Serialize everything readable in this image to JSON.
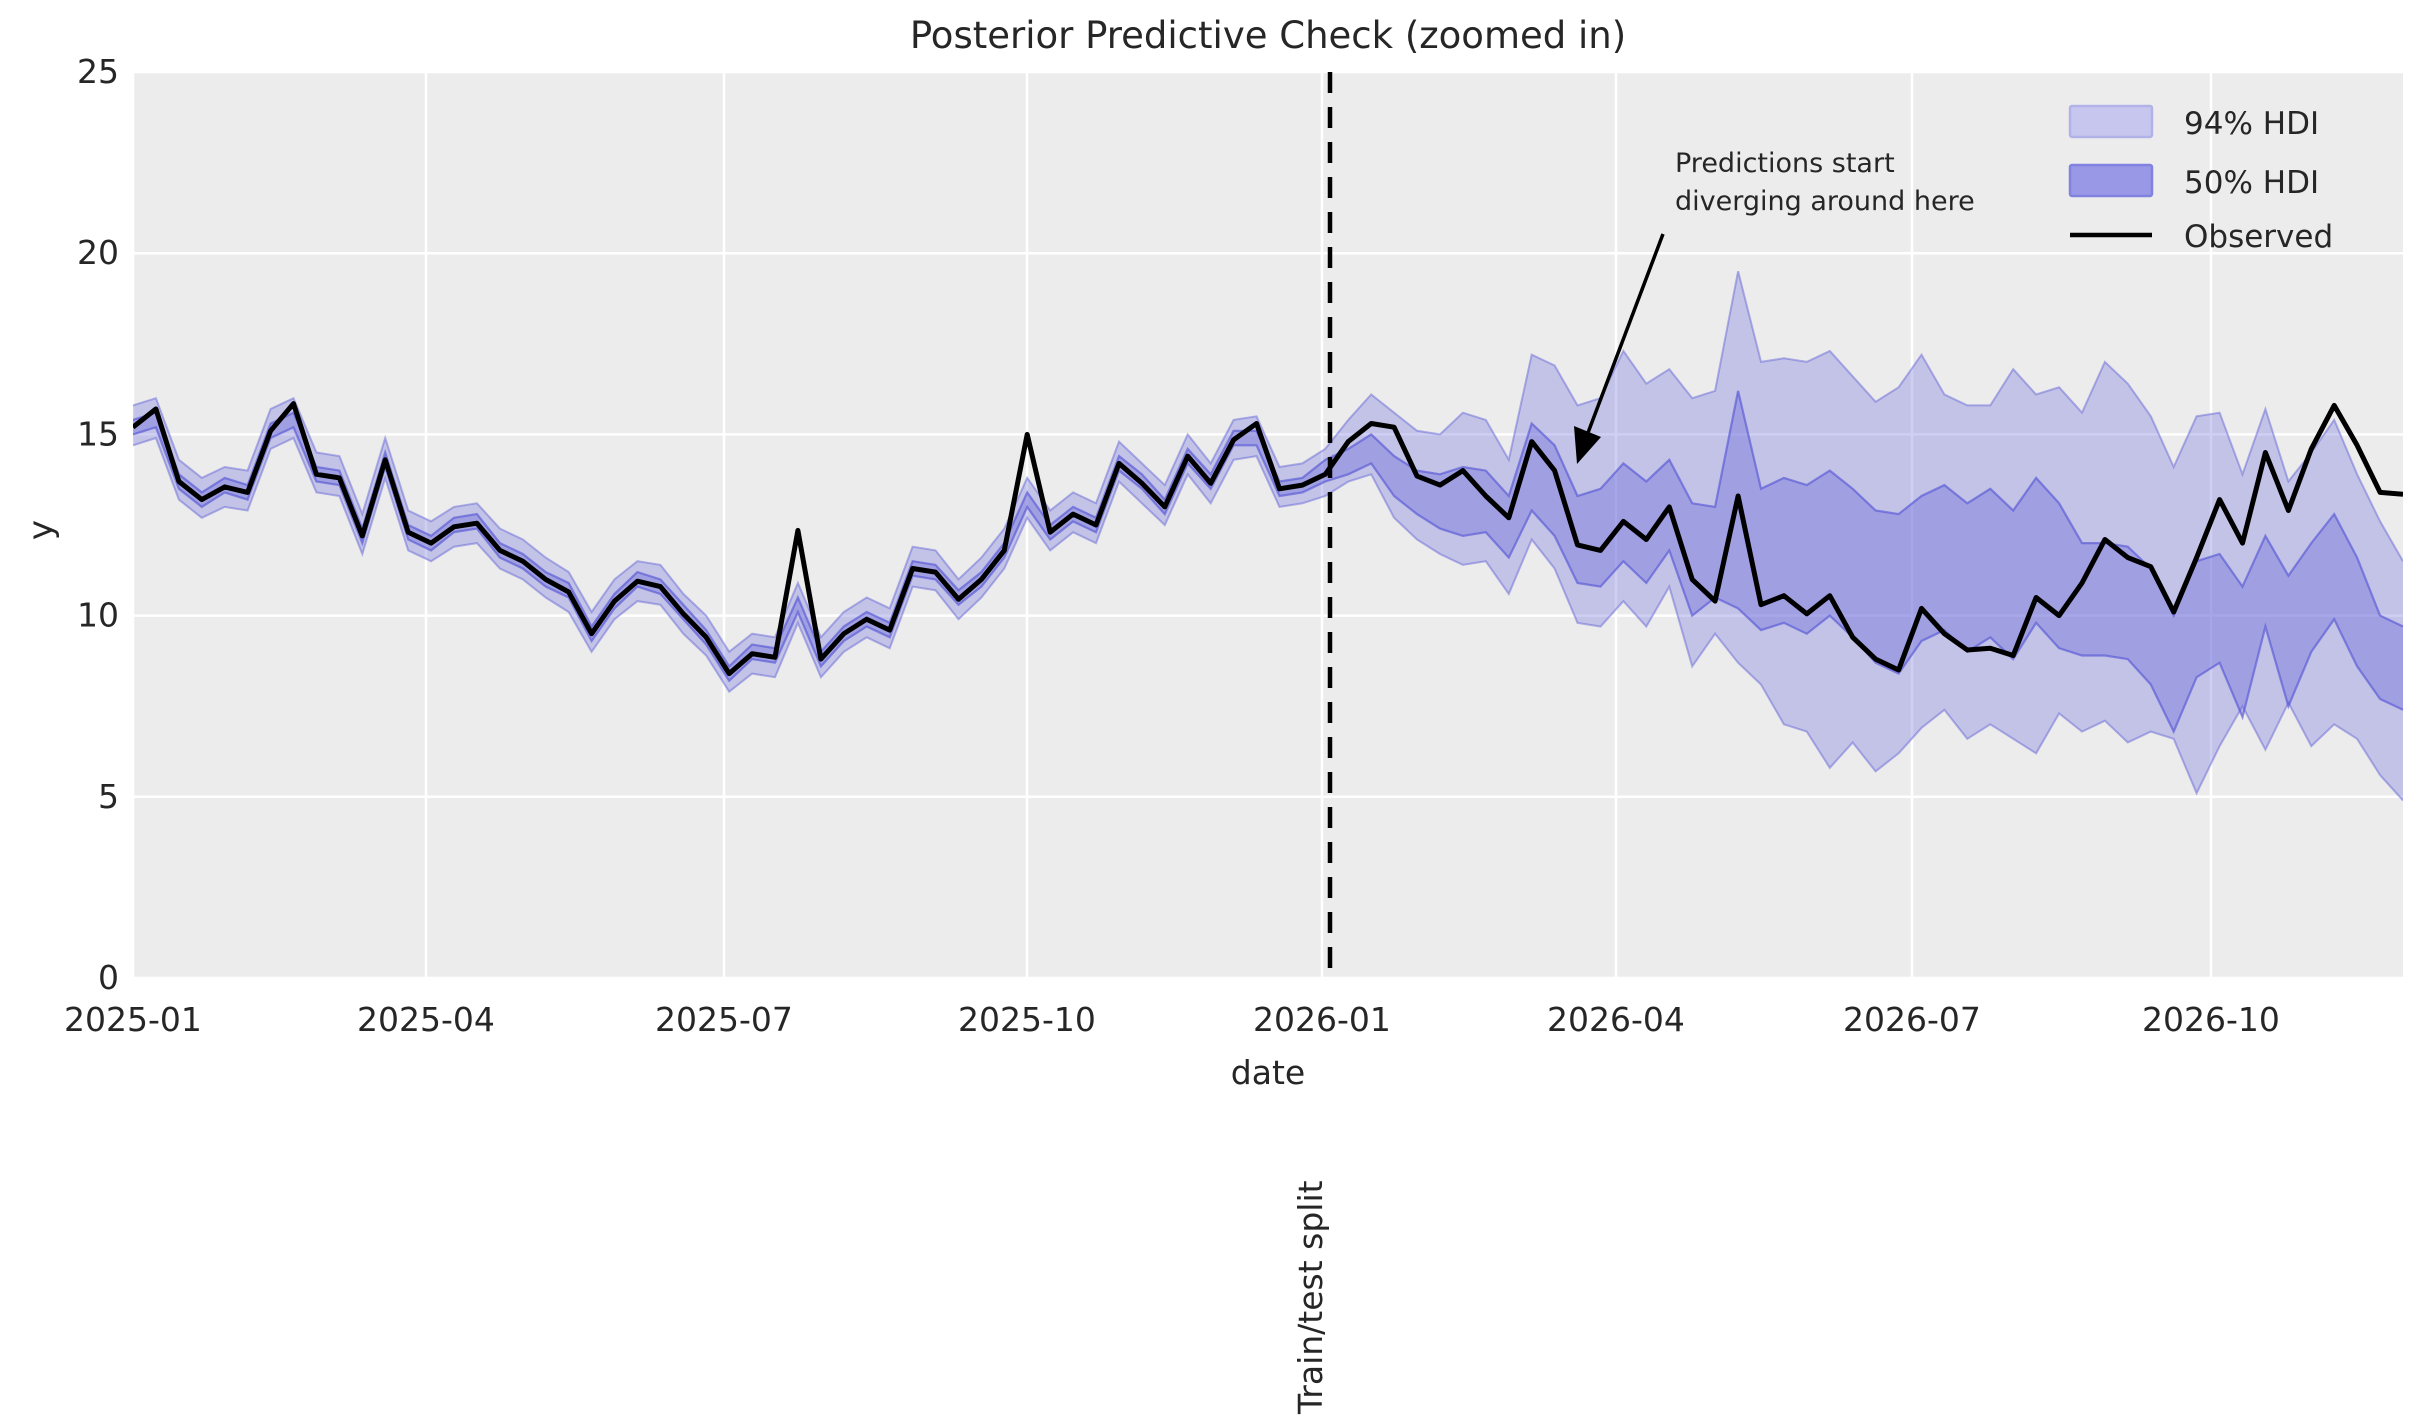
{
  "title": "Posterior Predictive Check (zoomed in)",
  "axes": {
    "xlabel": "date",
    "ylabel": "y",
    "x_tick_labels": [
      "2025-01",
      "2025-04",
      "2025-07",
      "2025-10",
      "2026-01",
      "2026-04",
      "2026-07",
      "2026-10"
    ],
    "y_tick_labels": [
      "0",
      "5",
      "10",
      "15",
      "20",
      "25"
    ],
    "y_tick_values": [
      0,
      5,
      10,
      15,
      20,
      25
    ],
    "ylim": [
      0,
      25
    ],
    "grid": "white gridlines on light gray background"
  },
  "legend": {
    "position": "upper right, frameless",
    "items": [
      {
        "label": "94% HDI",
        "type": "patch",
        "color_key": "band94"
      },
      {
        "label": "50% HDI",
        "type": "patch",
        "color_key": "band50"
      },
      {
        "label": "Observed",
        "type": "line",
        "color_key": "observed"
      }
    ]
  },
  "annotation": {
    "line1": "Predictions start",
    "line2": "diverging around here"
  },
  "split_marker": {
    "label": "Train/test split",
    "style": "black dashed vertical line",
    "date": "2026-01"
  },
  "colors": {
    "figure_bg": "#ffffff",
    "plot_bg": "#ececec",
    "grid": "#ffffff",
    "band94_fill": "rgba(130,130,224,0.38)",
    "band94_edge": "rgba(104,104,216,0.50)",
    "band50_fill": "rgba(110,110,220,0.42)",
    "band50_edge": "rgba(88,88,214,0.65)",
    "band94_swatch": "#c6c6ee",
    "band94_swatch_edge": "#b2b2e9",
    "band50_swatch": "#9898e6",
    "band50_swatch_edge": "#8181df",
    "observed": "#000000",
    "split_line": "#000000",
    "text": "#262626"
  },
  "chart_data": {
    "type": "line",
    "title": "Posterior Predictive Check (zoomed in)",
    "xlabel": "date",
    "ylabel": "y",
    "ylim": [
      0,
      25
    ],
    "x_start": "2025-01-05",
    "x_step_days": 7,
    "n_points": 100,
    "train_points": 52,
    "split_after_index": 51,
    "legend_position": "upper right",
    "series": [
      {
        "name": "Observed",
        "values": [
          15.2,
          15.7,
          13.7,
          13.2,
          13.55,
          13.4,
          15.1,
          15.85,
          13.9,
          13.8,
          12.2,
          14.3,
          12.3,
          12.0,
          12.45,
          12.55,
          11.8,
          11.5,
          11.0,
          10.65,
          9.5,
          10.4,
          10.95,
          10.8,
          10.05,
          9.4,
          8.4,
          8.95,
          8.85,
          12.35,
          8.8,
          9.5,
          9.9,
          9.6,
          11.3,
          11.2,
          10.45,
          11.0,
          11.8,
          15.0,
          12.3,
          12.8,
          12.5,
          14.2,
          13.65,
          13.0,
          14.4,
          13.65,
          14.85,
          15.3,
          13.5,
          13.6,
          13.9,
          14.8,
          15.3,
          15.2,
          13.85,
          13.6,
          14.0,
          13.3,
          12.7,
          14.8,
          14.0,
          11.95,
          11.8,
          12.6,
          12.1,
          13.0,
          11.0,
          10.4,
          13.3,
          10.3,
          10.55,
          10.05,
          10.55,
          9.4,
          8.8,
          8.5,
          10.2,
          9.5,
          9.05,
          9.1,
          8.9,
          10.5,
          10.0,
          10.9,
          12.1,
          11.6,
          11.35,
          10.1,
          11.6,
          13.2,
          12.0,
          14.5,
          12.9,
          14.6,
          15.8,
          14.7,
          13.4,
          13.35
        ]
      },
      {
        "name": "94% HDI upper",
        "values": [
          15.8,
          16.0,
          14.3,
          13.8,
          14.1,
          14.0,
          15.7,
          16.0,
          14.5,
          14.4,
          12.8,
          14.9,
          12.9,
          12.6,
          13.0,
          13.1,
          12.4,
          12.1,
          11.6,
          11.2,
          10.1,
          11.0,
          11.5,
          11.4,
          10.6,
          10.0,
          9.0,
          9.5,
          9.4,
          10.9,
          9.4,
          10.1,
          10.5,
          10.2,
          11.9,
          11.8,
          11.0,
          11.6,
          12.4,
          13.8,
          12.9,
          13.4,
          13.1,
          14.8,
          14.2,
          13.6,
          15.0,
          14.2,
          15.4,
          15.5,
          14.1,
          14.2,
          14.6,
          15.4,
          16.1,
          15.6,
          15.1,
          15.0,
          15.6,
          15.4,
          14.3,
          17.2,
          16.9,
          15.8,
          16.0,
          17.3,
          16.4,
          16.8,
          16.0,
          16.2,
          19.5,
          17.0,
          17.1,
          17.0,
          17.3,
          16.6,
          15.9,
          16.3,
          17.2,
          16.1,
          15.8,
          15.8,
          16.8,
          16.1,
          16.3,
          15.6,
          17.0,
          16.4,
          15.5,
          14.1,
          15.5,
          15.6,
          13.9,
          15.7,
          13.7,
          14.5,
          15.4,
          13.9,
          12.6,
          11.5
        ]
      },
      {
        "name": "94% HDI lower",
        "values": [
          14.7,
          14.9,
          13.2,
          12.7,
          13.0,
          12.9,
          14.6,
          14.9,
          13.4,
          13.3,
          11.7,
          13.8,
          11.8,
          11.5,
          11.9,
          12.0,
          11.3,
          11.0,
          10.5,
          10.1,
          9.0,
          9.9,
          10.4,
          10.3,
          9.5,
          8.9,
          7.9,
          8.4,
          8.3,
          9.8,
          8.3,
          9.0,
          9.4,
          9.1,
          10.8,
          10.7,
          9.9,
          10.5,
          11.3,
          12.7,
          11.8,
          12.3,
          12.0,
          13.7,
          13.1,
          12.5,
          13.9,
          13.1,
          14.3,
          14.4,
          13.0,
          13.1,
          13.3,
          13.7,
          13.9,
          12.7,
          12.1,
          11.7,
          11.4,
          11.5,
          10.6,
          12.1,
          11.3,
          9.8,
          9.7,
          10.4,
          9.7,
          10.8,
          8.6,
          9.5,
          8.7,
          8.1,
          7.0,
          6.8,
          5.8,
          6.5,
          5.7,
          6.2,
          6.9,
          7.4,
          6.6,
          7.0,
          6.6,
          6.2,
          7.3,
          6.8,
          7.1,
          6.5,
          6.8,
          6.6,
          5.1,
          6.4,
          7.5,
          6.3,
          7.6,
          6.4,
          7.0,
          6.6,
          5.6,
          4.9
        ]
      },
      {
        "name": "50% HDI upper",
        "values": [
          15.4,
          15.6,
          13.9,
          13.4,
          13.8,
          13.6,
          15.3,
          15.6,
          14.1,
          14.0,
          12.4,
          14.5,
          12.5,
          12.2,
          12.7,
          12.8,
          12.0,
          11.7,
          11.2,
          10.9,
          9.7,
          10.6,
          11.2,
          11.0,
          10.3,
          9.6,
          8.6,
          9.2,
          9.1,
          10.5,
          9.0,
          9.7,
          10.1,
          9.8,
          11.5,
          11.4,
          10.7,
          11.2,
          12.0,
          13.4,
          12.5,
          13.0,
          12.7,
          14.4,
          13.9,
          13.2,
          14.6,
          13.9,
          15.1,
          15.1,
          13.7,
          13.8,
          14.3,
          14.6,
          15.0,
          14.4,
          14.0,
          13.9,
          14.1,
          14.0,
          13.3,
          15.3,
          14.7,
          13.3,
          13.5,
          14.2,
          13.7,
          14.3,
          13.1,
          13.0,
          16.2,
          13.5,
          13.8,
          13.6,
          14.0,
          13.5,
          12.9,
          12.8,
          13.3,
          13.6,
          13.1,
          13.5,
          12.9,
          13.8,
          13.1,
          12.0,
          12.0,
          11.9,
          11.3,
          10.0,
          11.5,
          11.7,
          10.8,
          12.2,
          11.1,
          12.0,
          12.8,
          11.6,
          10.0,
          9.7
        ]
      },
      {
        "name": "50% HDI lower",
        "values": [
          15.0,
          15.2,
          13.5,
          13.0,
          13.4,
          13.2,
          14.9,
          15.2,
          13.7,
          13.6,
          12.0,
          14.1,
          12.1,
          11.8,
          12.3,
          12.4,
          11.6,
          11.3,
          10.8,
          10.5,
          9.3,
          10.2,
          10.8,
          10.6,
          9.9,
          9.2,
          8.2,
          8.8,
          8.7,
          10.1,
          8.6,
          9.3,
          9.7,
          9.4,
          11.1,
          11.0,
          10.3,
          10.8,
          11.6,
          13.0,
          12.1,
          12.6,
          12.3,
          14.0,
          13.5,
          12.8,
          14.2,
          13.5,
          14.7,
          14.7,
          13.3,
          13.4,
          13.7,
          13.9,
          14.2,
          13.3,
          12.8,
          12.4,
          12.2,
          12.3,
          11.6,
          12.9,
          12.2,
          10.9,
          10.8,
          11.5,
          10.9,
          11.8,
          10.0,
          10.5,
          10.2,
          9.6,
          9.8,
          9.5,
          10.0,
          9.4,
          8.7,
          8.4,
          9.3,
          9.6,
          9.0,
          9.4,
          8.8,
          9.8,
          9.1,
          8.9,
          8.9,
          8.8,
          8.1,
          6.8,
          8.3,
          8.7,
          7.2,
          9.7,
          7.5,
          9.0,
          9.9,
          8.6,
          7.7,
          7.4
        ]
      }
    ]
  }
}
